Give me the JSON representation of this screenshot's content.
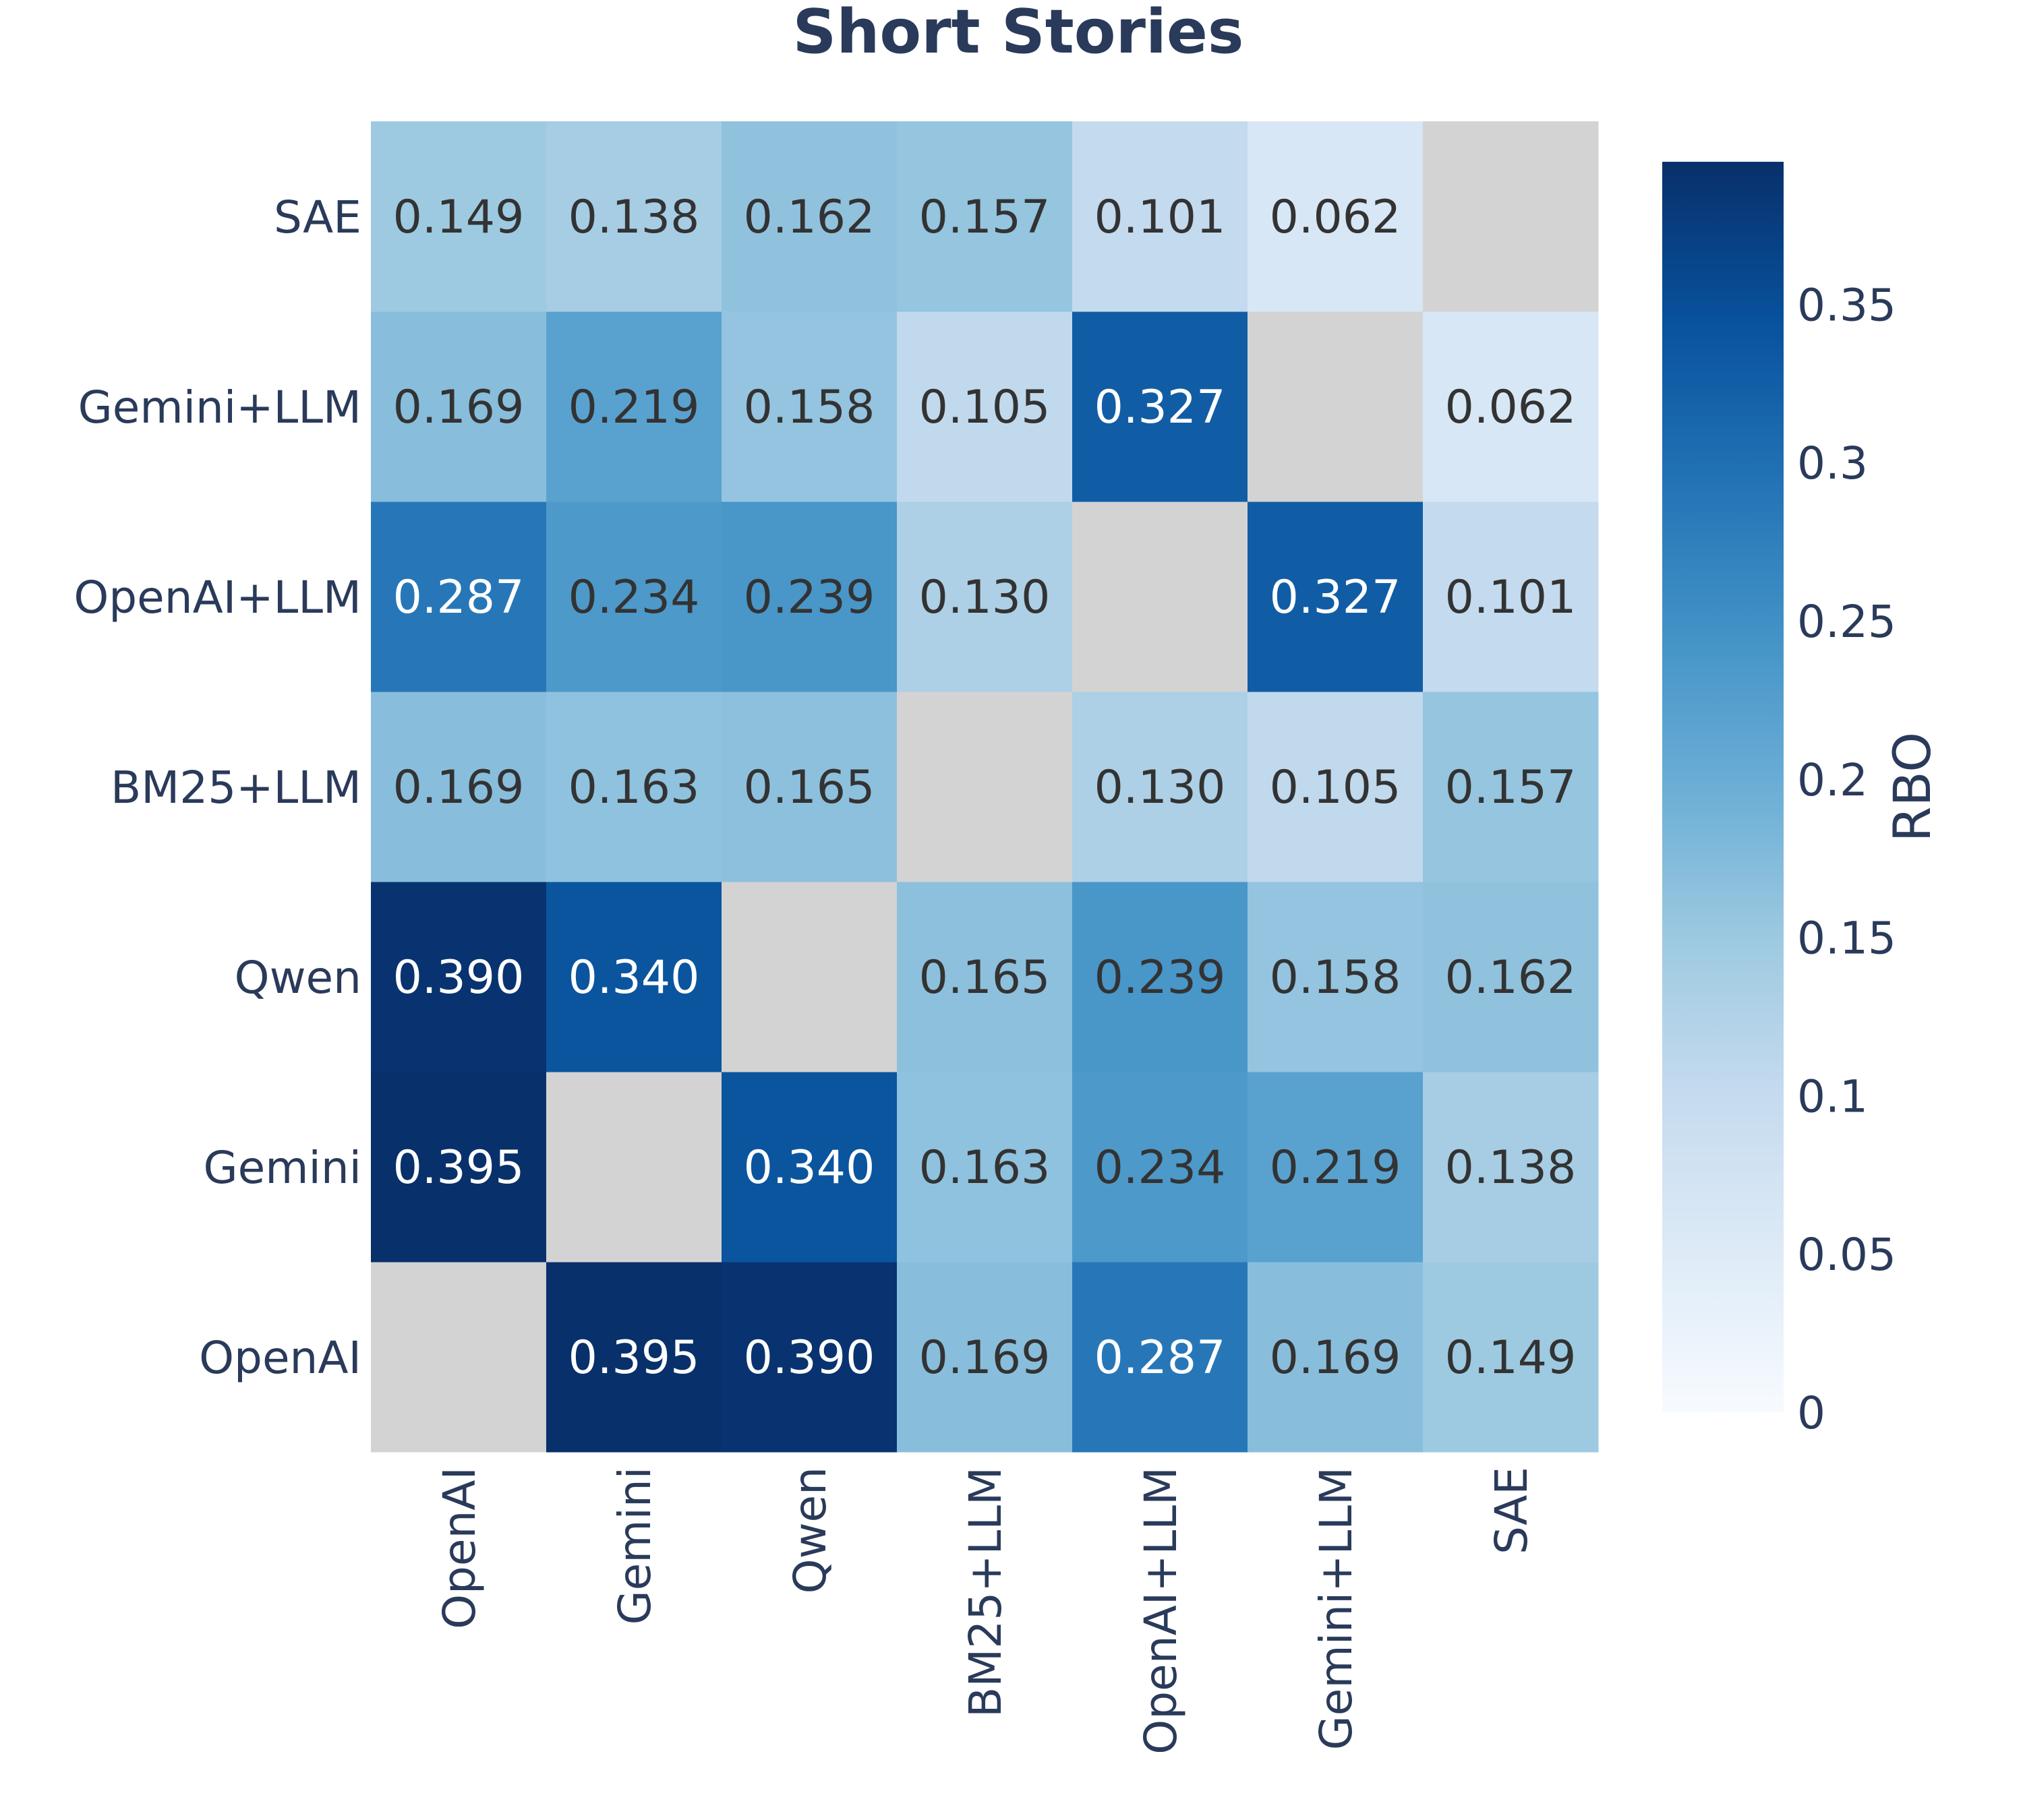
{
  "chart_data": {
    "type": "heatmap",
    "title": "Short Stories",
    "x_categories": [
      "OpenAI",
      "Gemini",
      "Qwen",
      "BM25+LLM",
      "OpenAI+LLM",
      "Gemini+LLM",
      "SAE"
    ],
    "y_categories": [
      "OpenAI",
      "Gemini",
      "Qwen",
      "BM25+LLM",
      "OpenAI+LLM",
      "Gemini+LLM",
      "SAE"
    ],
    "values": [
      [
        null,
        0.395,
        0.39,
        0.169,
        0.287,
        0.169,
        0.149
      ],
      [
        0.395,
        null,
        0.34,
        0.163,
        0.234,
        0.219,
        0.138
      ],
      [
        0.39,
        0.34,
        null,
        0.165,
        0.239,
        0.158,
        0.162
      ],
      [
        0.169,
        0.163,
        0.165,
        null,
        0.13,
        0.105,
        0.157
      ],
      [
        0.287,
        0.234,
        0.239,
        0.13,
        null,
        0.327,
        0.101
      ],
      [
        0.169,
        0.219,
        0.158,
        0.105,
        0.327,
        null,
        0.062
      ],
      [
        0.149,
        0.138,
        0.162,
        0.157,
        0.101,
        0.062,
        null
      ]
    ],
    "value_format": "0.000",
    "diagonal_color": "#d3d3d3",
    "colormap": "Blues",
    "colorbar": {
      "label": "RBO",
      "range": [
        0,
        0.395
      ],
      "ticks": [
        0,
        0.05,
        0.1,
        0.15,
        0.2,
        0.25,
        0.3,
        0.35
      ],
      "tick_labels": [
        "0",
        "0.05",
        "0.1",
        "0.15",
        "0.2",
        "0.25",
        "0.3",
        "0.35"
      ]
    },
    "text_color_dark": "#333333",
    "text_color_light": "#ffffff",
    "axis_text_color": "#2a3a5a"
  }
}
